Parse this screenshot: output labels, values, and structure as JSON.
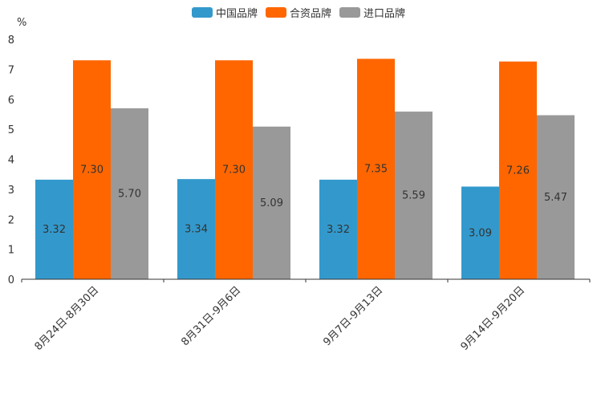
{
  "chart_data": {
    "type": "bar",
    "y_unit": "%",
    "ylim": [
      0,
      8
    ],
    "yticks": [
      0,
      1,
      2,
      3,
      4,
      5,
      6,
      7,
      8
    ],
    "categories": [
      "8月24日-8月30日",
      "8月31日-9月6日",
      "9月7日-9月13日",
      "9月14日-9月20日"
    ],
    "series": [
      {
        "name": "中国品牌",
        "color": "#3399CC",
        "values": [
          3.32,
          3.34,
          3.32,
          3.09
        ],
        "labels": [
          "3.32",
          "3.34",
          "3.32",
          "3.09"
        ]
      },
      {
        "name": "合资品牌",
        "color": "#FF6600",
        "values": [
          7.3,
          7.3,
          7.35,
          7.26
        ],
        "labels": [
          "7.30",
          "7.30",
          "7.35",
          "7.26"
        ]
      },
      {
        "name": "进口品牌",
        "color": "#999999",
        "values": [
          5.7,
          5.09,
          5.59,
          5.47
        ],
        "labels": [
          "5.70",
          "5.09",
          "5.59",
          "5.47"
        ]
      }
    ]
  }
}
